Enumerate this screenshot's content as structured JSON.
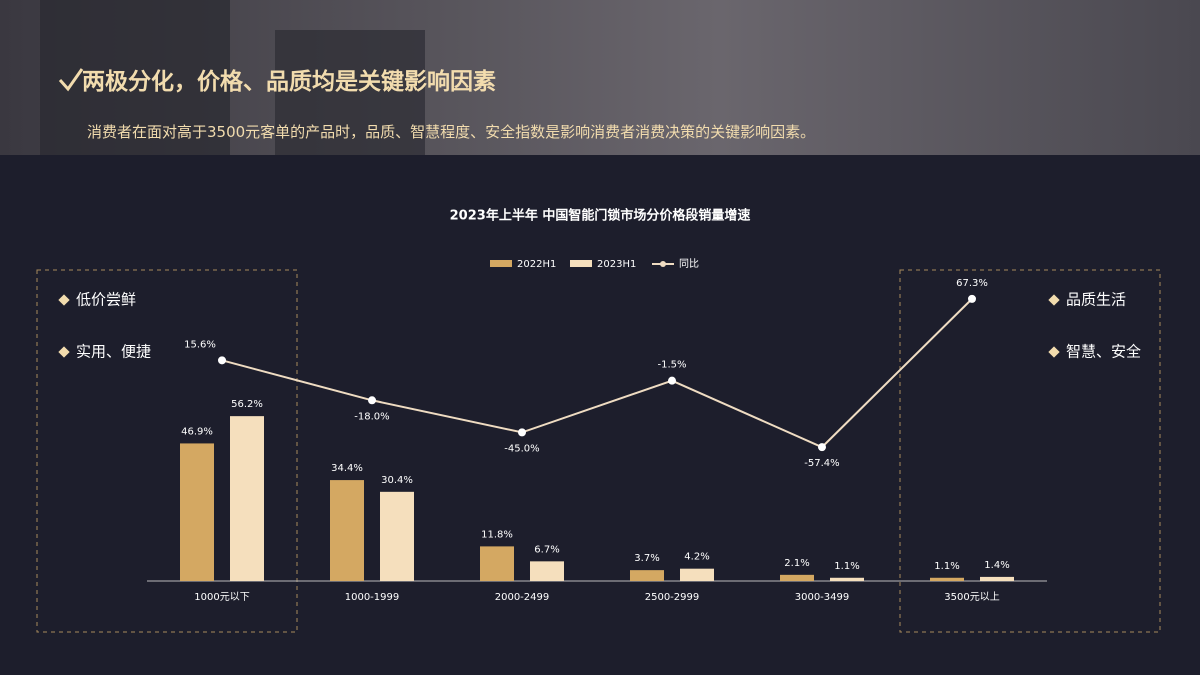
{
  "header": {
    "title": "两极分化，价格、品质均是关键影响因素",
    "subtitle": "消费者在面对高于3500元客单的产品时，品质、智慧程度、安全指数是影响消费者消费决策的关键影响因素。"
  },
  "annotations": {
    "left": [
      "低价尝鲜",
      "实用、便捷"
    ],
    "right": [
      "品质生活",
      "智慧、安全"
    ]
  },
  "chart_data": {
    "type": "bar",
    "title": "2023年上半年  中国智能门锁市场分价格段销量增速",
    "categories": [
      "1000元以下",
      "1000-1999",
      "2000-2499",
      "2500-2999",
      "3000-3499",
      "3500元以上"
    ],
    "ylim": [
      0,
      60
    ],
    "y2lim": [
      -170,
      100
    ],
    "series": [
      {
        "name": "2022H1",
        "color": "#d4a862",
        "values": [
          46.9,
          34.4,
          11.8,
          3.7,
          2.1,
          1.1
        ],
        "value_labels": [
          "46.9%",
          "34.4%",
          "11.8%",
          "3.7%",
          "2.1%",
          "1.1%"
        ]
      },
      {
        "name": "2023H1",
        "color": "#f5dfbd",
        "values": [
          56.2,
          30.4,
          6.7,
          4.2,
          1.1,
          1.4
        ],
        "value_labels": [
          "56.2%",
          "30.4%",
          "6.7%",
          "4.2%",
          "1.1%",
          "1.4%"
        ]
      },
      {
        "name": "同比",
        "type": "line",
        "axis": "y2",
        "color": "#efdcc2",
        "values": [
          15.6,
          -18.0,
          -45.0,
          -1.5,
          -57.4,
          67.3
        ],
        "value_labels": [
          "15.6%",
          "-18.0%",
          "-45.0%",
          "-1.5%",
          "-57.4%",
          "67.3%"
        ]
      }
    ]
  }
}
